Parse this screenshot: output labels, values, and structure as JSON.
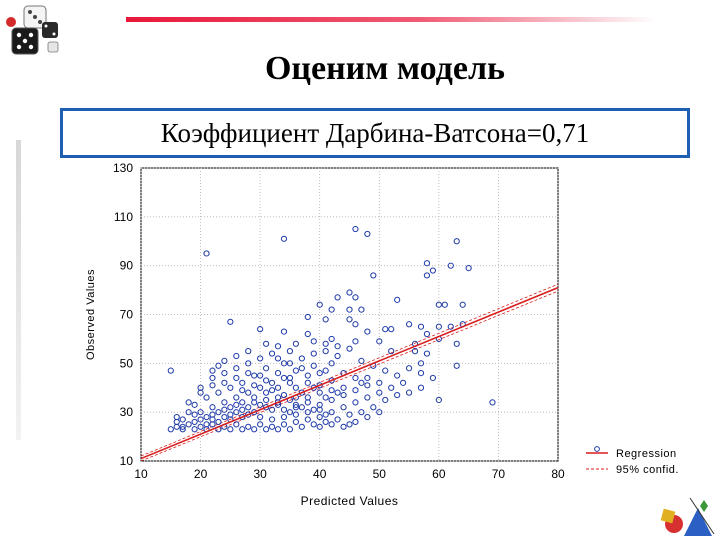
{
  "slide": {
    "title": "Оценим модель",
    "subtitle": "Коэффициент Дарбина-Ватсона=0,71"
  },
  "colors": {
    "accent_line": "#e8183a",
    "box_border": "#1f5fb3",
    "points": "#1e3aa8",
    "regression": "#d81e1e"
  },
  "chart_data": {
    "type": "scatter",
    "xlabel": "Predicted Values",
    "ylabel": "Observed Values",
    "xlim": [
      10,
      80
    ],
    "ylim": [
      10,
      130
    ],
    "xticks": [
      10,
      20,
      30,
      40,
      50,
      60,
      70,
      80
    ],
    "yticks": [
      10,
      30,
      50,
      70,
      90,
      110,
      130
    ],
    "grid": true,
    "legend": [
      "Regression",
      "95% confid."
    ],
    "legend_placement": "bottom-right",
    "regression_line": {
      "x": [
        10,
        80
      ],
      "y": [
        11,
        81
      ]
    },
    "points": [
      [
        21,
        95
      ],
      [
        34,
        101
      ],
      [
        46,
        105
      ],
      [
        48,
        103
      ],
      [
        63,
        100
      ],
      [
        58,
        91
      ],
      [
        62,
        90
      ],
      [
        59,
        88
      ],
      [
        65,
        89
      ],
      [
        49,
        86
      ],
      [
        58,
        86
      ],
      [
        43,
        77
      ],
      [
        46,
        77
      ],
      [
        45,
        79
      ],
      [
        53,
        76
      ],
      [
        60,
        74
      ],
      [
        61,
        74
      ],
      [
        64,
        74
      ],
      [
        40,
        74
      ],
      [
        42,
        72
      ],
      [
        45,
        72
      ],
      [
        47,
        72
      ],
      [
        38,
        69
      ],
      [
        41,
        68
      ],
      [
        45,
        68
      ],
      [
        25,
        67
      ],
      [
        46,
        66
      ],
      [
        51,
        64
      ],
      [
        52,
        64
      ],
      [
        55,
        66
      ],
      [
        57,
        65
      ],
      [
        60,
        65
      ],
      [
        62,
        65
      ],
      [
        64,
        66
      ],
      [
        30,
        64
      ],
      [
        34,
        63
      ],
      [
        38,
        62
      ],
      [
        48,
        63
      ],
      [
        58,
        62
      ],
      [
        60,
        60
      ],
      [
        63,
        58
      ],
      [
        56,
        58
      ],
      [
        36,
        58
      ],
      [
        42,
        60
      ],
      [
        46,
        59
      ],
      [
        50,
        59
      ],
      [
        52,
        55
      ],
      [
        56,
        55
      ],
      [
        58,
        54
      ],
      [
        57,
        50
      ],
      [
        59,
        44
      ],
      [
        63,
        49
      ],
      [
        69,
        34
      ],
      [
        60,
        35
      ],
      [
        55,
        38
      ],
      [
        57,
        40
      ],
      [
        50,
        42
      ],
      [
        48,
        44
      ],
      [
        15,
        47
      ],
      [
        18,
        34
      ],
      [
        16,
        28
      ],
      [
        20,
        40
      ],
      [
        22,
        44
      ],
      [
        24,
        46
      ],
      [
        26,
        48
      ],
      [
        28,
        50
      ],
      [
        30,
        52
      ],
      [
        32,
        54
      ],
      [
        34,
        50
      ],
      [
        36,
        47
      ],
      [
        38,
        45
      ],
      [
        40,
        46
      ],
      [
        42,
        50
      ],
      [
        44,
        46
      ],
      [
        46,
        44
      ],
      [
        47,
        42
      ],
      [
        43,
        38
      ],
      [
        41,
        36
      ],
      [
        39,
        40
      ],
      [
        37,
        38
      ],
      [
        35,
        42
      ],
      [
        33,
        40
      ],
      [
        31,
        38
      ],
      [
        29,
        36
      ],
      [
        27,
        34
      ],
      [
        25,
        32
      ],
      [
        23,
        30
      ],
      [
        21,
        28
      ],
      [
        19,
        26
      ],
      [
        17,
        24
      ],
      [
        15,
        23
      ],
      [
        16,
        24
      ],
      [
        18,
        25
      ],
      [
        20,
        24
      ],
      [
        22,
        25
      ],
      [
        24,
        24
      ],
      [
        26,
        25
      ],
      [
        28,
        24
      ],
      [
        30,
        25
      ],
      [
        32,
        24
      ],
      [
        34,
        25
      ],
      [
        36,
        26
      ],
      [
        38,
        27
      ],
      [
        40,
        28
      ],
      [
        42,
        30
      ],
      [
        44,
        32
      ],
      [
        46,
        34
      ],
      [
        48,
        36
      ],
      [
        50,
        38
      ],
      [
        52,
        40
      ],
      [
        54,
        42
      ],
      [
        45,
        29
      ],
      [
        43,
        27
      ],
      [
        41,
        26
      ],
      [
        39,
        25
      ],
      [
        37,
        24
      ],
      [
        35,
        23
      ],
      [
        33,
        23
      ],
      [
        31,
        23
      ],
      [
        29,
        23
      ],
      [
        27,
        23
      ],
      [
        25,
        23
      ],
      [
        23,
        23
      ],
      [
        21,
        23
      ],
      [
        19,
        23
      ],
      [
        17,
        23
      ],
      [
        20,
        30
      ],
      [
        22,
        32
      ],
      [
        24,
        34
      ],
      [
        26,
        36
      ],
      [
        28,
        38
      ],
      [
        30,
        40
      ],
      [
        32,
        42
      ],
      [
        34,
        44
      ],
      [
        36,
        36
      ],
      [
        38,
        34
      ],
      [
        40,
        33
      ],
      [
        42,
        35
      ],
      [
        44,
        37
      ],
      [
        27,
        28
      ],
      [
        29,
        30
      ],
      [
        31,
        32
      ],
      [
        33,
        34
      ],
      [
        35,
        30
      ],
      [
        37,
        32
      ],
      [
        39,
        31
      ],
      [
        41,
        29
      ],
      [
        25,
        27
      ],
      [
        23,
        26
      ],
      [
        21,
        25
      ],
      [
        30,
        28
      ],
      [
        32,
        27
      ],
      [
        34,
        28
      ],
      [
        36,
        29
      ],
      [
        26,
        30
      ],
      [
        28,
        29
      ],
      [
        24,
        28
      ],
      [
        22,
        27
      ],
      [
        35,
        35
      ],
      [
        33,
        36
      ],
      [
        31,
        35
      ],
      [
        29,
        34
      ],
      [
        27,
        31
      ],
      [
        25,
        29
      ],
      [
        35,
        44
      ],
      [
        33,
        46
      ],
      [
        31,
        48
      ],
      [
        29,
        45
      ],
      [
        27,
        42
      ],
      [
        25,
        40
      ],
      [
        23,
        38
      ],
      [
        21,
        36
      ],
      [
        19,
        33
      ],
      [
        18,
        30
      ],
      [
        30,
        45
      ],
      [
        32,
        39
      ],
      [
        34,
        37
      ],
      [
        36,
        40
      ],
      [
        38,
        42
      ],
      [
        40,
        41
      ],
      [
        42,
        43
      ],
      [
        44,
        40
      ],
      [
        46,
        39
      ],
      [
        48,
        41
      ],
      [
        28,
        46
      ],
      [
        26,
        44
      ],
      [
        24,
        42
      ],
      [
        22,
        41
      ],
      [
        20,
        38
      ],
      [
        17,
        27
      ],
      [
        16,
        26
      ],
      [
        45,
        25
      ],
      [
        47,
        30
      ],
      [
        49,
        32
      ],
      [
        51,
        35
      ],
      [
        53,
        37
      ],
      [
        40,
        24
      ],
      [
        42,
        25
      ],
      [
        44,
        24
      ],
      [
        46,
        26
      ],
      [
        48,
        28
      ],
      [
        50,
        30
      ],
      [
        37,
        52
      ],
      [
        39,
        54
      ],
      [
        41,
        55
      ],
      [
        43,
        53
      ],
      [
        45,
        56
      ],
      [
        47,
        51
      ],
      [
        49,
        49
      ],
      [
        51,
        47
      ],
      [
        53,
        45
      ],
      [
        55,
        48
      ],
      [
        57,
        46
      ],
      [
        35,
        55
      ],
      [
        33,
        57
      ],
      [
        31,
        58
      ],
      [
        28,
        55
      ],
      [
        26,
        53
      ],
      [
        24,
        51
      ],
      [
        23,
        49
      ],
      [
        22,
        47
      ],
      [
        39,
        59
      ],
      [
        41,
        58
      ],
      [
        43,
        57
      ],
      [
        33,
        52
      ],
      [
        35,
        50
      ],
      [
        37,
        48
      ],
      [
        39,
        49
      ],
      [
        41,
        47
      ],
      [
        36,
        33
      ],
      [
        38,
        30
      ],
      [
        40,
        31
      ],
      [
        32,
        31
      ],
      [
        30,
        33
      ],
      [
        28,
        32
      ],
      [
        26,
        33
      ],
      [
        24,
        31
      ],
      [
        22,
        29
      ],
      [
        20,
        27
      ],
      [
        19,
        29
      ],
      [
        27,
        39
      ],
      [
        29,
        41
      ],
      [
        31,
        43
      ],
      [
        33,
        33
      ],
      [
        34,
        31
      ],
      [
        36,
        32
      ],
      [
        38,
        36
      ],
      [
        40,
        38
      ],
      [
        42,
        39
      ]
    ]
  }
}
